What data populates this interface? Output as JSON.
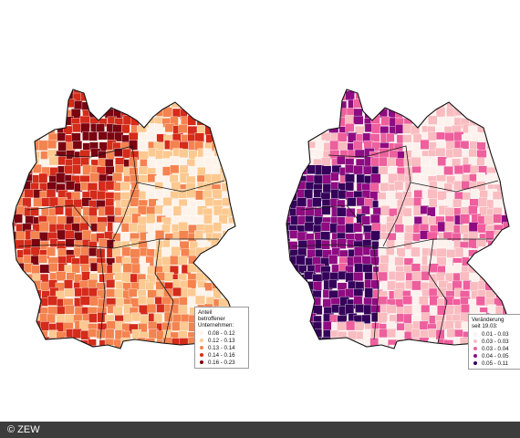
{
  "maps": [
    {
      "id": "share",
      "legend_title": "Anteil\nbetroffener\nUnternehmen:",
      "classes": [
        {
          "label": "0.08 - 0.12",
          "color": "#fdf3ea"
        },
        {
          "label": "0.12 - 0.13",
          "color": "#fcc990"
        },
        {
          "label": "0.13 - 0.14",
          "color": "#f4834f"
        },
        {
          "label": "0.14 - 0.16",
          "color": "#d42b1a"
        },
        {
          "label": "0.16 - 0.23",
          "color": "#7a0410"
        }
      ]
    },
    {
      "id": "change",
      "legend_title": "Veränderung\nseit 19.03:",
      "classes": [
        {
          "label": "0.01 - 0.03",
          "color": "#fdf1ee"
        },
        {
          "label": "0.03 - 0.03",
          "color": "#f9bcc0"
        },
        {
          "label": "0.03 - 0.04",
          "color": "#ee5f9d"
        },
        {
          "label": "0.04 - 0.05",
          "color": "#8e0b82"
        },
        {
          "label": "0.05 - 0.11",
          "color": "#34005a"
        }
      ]
    }
  ],
  "footer": {
    "copyright": "© ZEW"
  }
}
